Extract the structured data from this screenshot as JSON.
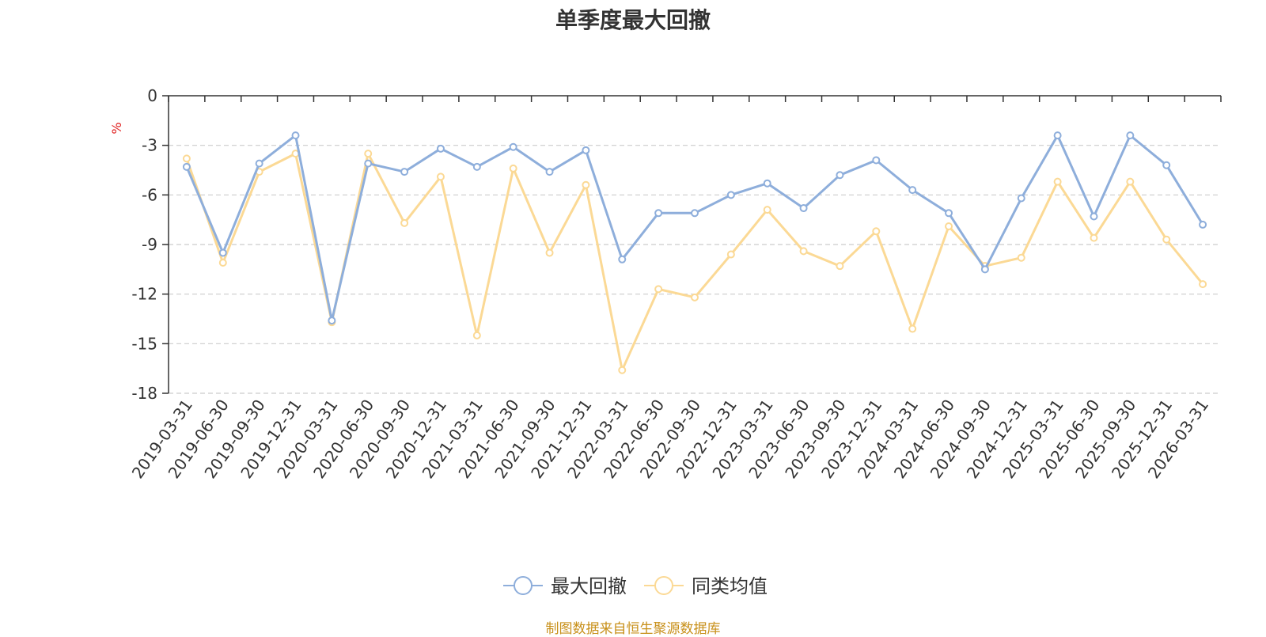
{
  "chart_data": {
    "type": "line",
    "title": "单季度最大回撤",
    "ylabel": "%",
    "ylim": [
      -18,
      0
    ],
    "yticks": [
      0,
      -3,
      -6,
      -9,
      -12,
      -15,
      -18
    ],
    "grid": true,
    "legend_position": "bottom",
    "categories": [
      "2019-03-31",
      "2019-06-30",
      "2019-09-30",
      "2019-12-31",
      "2020-03-31",
      "2020-06-30",
      "2020-09-30",
      "2020-12-31",
      "2021-03-31",
      "2021-06-30",
      "2021-09-30",
      "2021-12-31",
      "2022-03-31",
      "2022-06-30",
      "2022-09-30",
      "2022-12-31",
      "2023-03-31",
      "2023-06-30",
      "2023-09-30",
      "2023-12-31",
      "2024-03-31",
      "2024-06-30",
      "2024-09-30",
      "2024-12-31",
      "2025-03-31",
      "2025-06-30",
      "2025-09-30",
      "2025-12-31",
      "2026-03-31"
    ],
    "series": [
      {
        "name": "最大回撤",
        "color": "#8eaedb",
        "values": [
          -4.3,
          -9.5,
          -4.1,
          -2.4,
          -13.6,
          -4.1,
          -4.6,
          -3.2,
          -4.3,
          -3.1,
          -4.6,
          -3.3,
          -9.9,
          -7.1,
          -7.1,
          -6.0,
          -5.3,
          -6.8,
          -4.8,
          -3.9,
          -5.7,
          -7.1,
          -10.5,
          -6.2,
          -2.4,
          -7.3,
          -2.4,
          -4.2,
          -7.8
        ]
      },
      {
        "name": "同类均值",
        "color": "#fbd995",
        "values": [
          -3.8,
          -10.1,
          -4.6,
          -3.5,
          -13.7,
          -3.5,
          -7.7,
          -4.9,
          -14.5,
          -4.4,
          -9.5,
          -5.4,
          -16.6,
          -11.7,
          -12.2,
          -9.6,
          -6.9,
          -9.4,
          -10.3,
          -8.2,
          -14.1,
          -7.9,
          -10.3,
          -9.8,
          -5.2,
          -8.6,
          -5.2,
          -8.7,
          -11.4
        ]
      }
    ]
  },
  "source_note": "制图数据来自恒生聚源数据库"
}
